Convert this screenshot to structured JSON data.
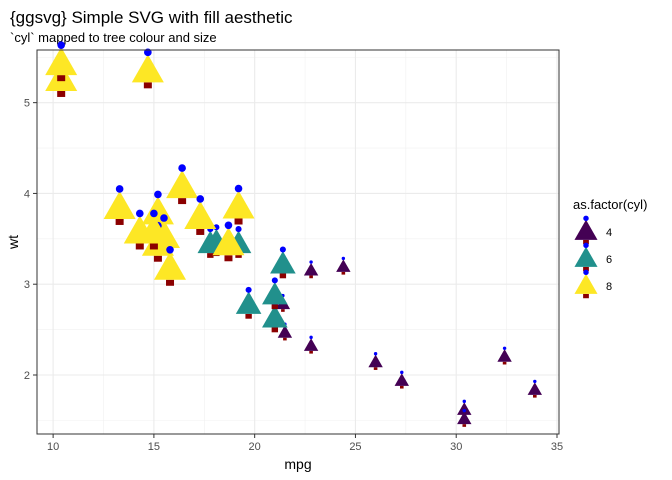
{
  "chart_data": {
    "type": "scatter",
    "title": "{ggsvg} Simple SVG with fill aesthetic",
    "subtitle": "`cyl` mapped to tree colour and size",
    "xlabel": "mpg",
    "ylabel": "wt",
    "xlim": [
      9.2,
      35.1
    ],
    "ylim": [
      1.35,
      5.58
    ],
    "xticks": [
      10,
      15,
      20,
      25,
      30,
      35
    ],
    "yticks": [
      2,
      3,
      4,
      5
    ],
    "grid": true,
    "legend": {
      "title": "as.factor(cyl)",
      "position": "right",
      "entries": [
        {
          "label": "4",
          "color": "#440154"
        },
        {
          "label": "6",
          "color": "#21908C"
        },
        {
          "label": "8",
          "color": "#FDE725"
        }
      ]
    },
    "colors": {
      "4": "#440154",
      "6": "#21908C",
      "8": "#FDE725",
      "trunk": "#8B0000",
      "ornament": "#0000FF"
    },
    "series": [
      {
        "group": "4",
        "points": [
          {
            "x": 22.8,
            "y": 2.32
          },
          {
            "x": 24.4,
            "y": 3.19
          },
          {
            "x": 22.8,
            "y": 3.15
          },
          {
            "x": 32.4,
            "y": 2.2
          },
          {
            "x": 30.4,
            "y": 1.615
          },
          {
            "x": 33.9,
            "y": 1.835
          },
          {
            "x": 21.5,
            "y": 2.465
          },
          {
            "x": 27.3,
            "y": 1.935
          },
          {
            "x": 26.0,
            "y": 2.14
          },
          {
            "x": 30.4,
            "y": 1.513
          },
          {
            "x": 21.4,
            "y": 2.78
          }
        ]
      },
      {
        "group": "6",
        "points": [
          {
            "x": 21.0,
            "y": 2.62
          },
          {
            "x": 21.0,
            "y": 2.875
          },
          {
            "x": 21.4,
            "y": 3.215
          },
          {
            "x": 18.1,
            "y": 3.46
          },
          {
            "x": 19.2,
            "y": 3.44
          },
          {
            "x": 17.8,
            "y": 3.44
          },
          {
            "x": 19.7,
            "y": 2.77
          }
        ]
      },
      {
        "group": "8",
        "points": [
          {
            "x": 18.7,
            "y": 3.44
          },
          {
            "x": 14.3,
            "y": 3.57
          },
          {
            "x": 16.4,
            "y": 4.07
          },
          {
            "x": 17.3,
            "y": 3.73
          },
          {
            "x": 15.2,
            "y": 3.78
          },
          {
            "x": 10.4,
            "y": 5.25
          },
          {
            "x": 10.4,
            "y": 5.424
          },
          {
            "x": 14.7,
            "y": 5.345
          },
          {
            "x": 15.5,
            "y": 3.52
          },
          {
            "x": 15.2,
            "y": 3.435
          },
          {
            "x": 13.3,
            "y": 3.84
          },
          {
            "x": 19.2,
            "y": 3.845
          },
          {
            "x": 15.8,
            "y": 3.17
          },
          {
            "x": 15.0,
            "y": 3.57
          }
        ]
      }
    ]
  }
}
